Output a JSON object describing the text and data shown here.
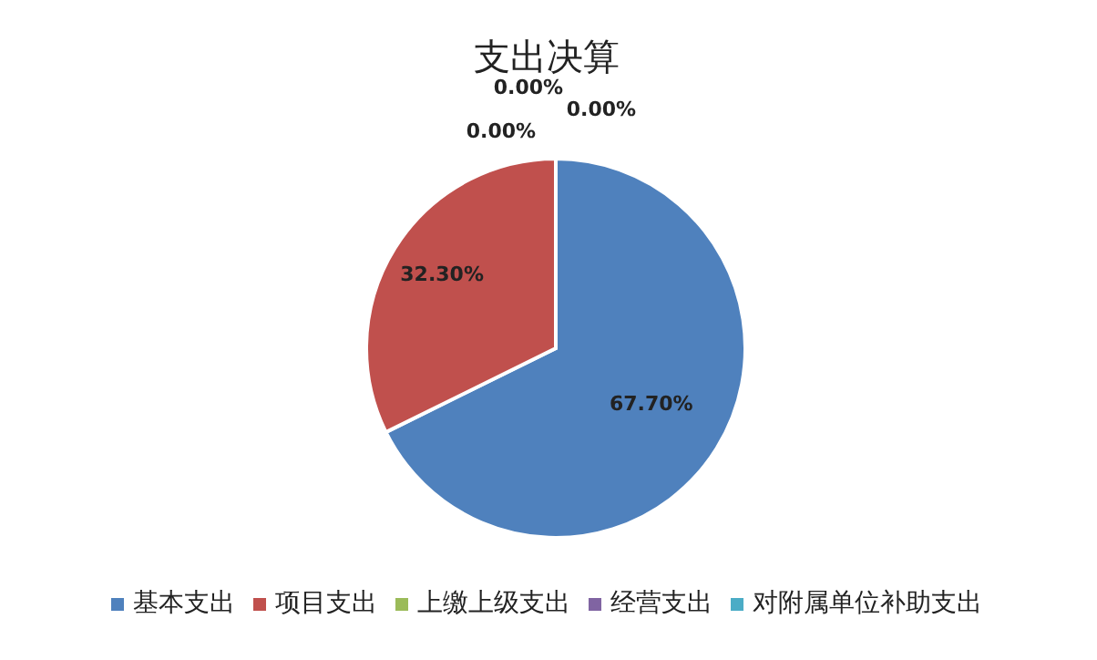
{
  "chart_data": {
    "type": "pie",
    "title": "支出决算",
    "categories": [
      "基本支出",
      "项目支出",
      "上缴上级支出",
      "经营支出",
      "对附属单位补助支出"
    ],
    "values": [
      67.7,
      32.3,
      0,
      0,
      0
    ],
    "colors": [
      "#4f81bd",
      "#c0504d",
      "#9bbb59",
      "#8064a2",
      "#4bacc6"
    ],
    "value_labels": [
      "67.70%",
      "32.30%",
      "0.00%",
      "0.00%",
      "0.00%"
    ],
    "legend": "bottom"
  }
}
